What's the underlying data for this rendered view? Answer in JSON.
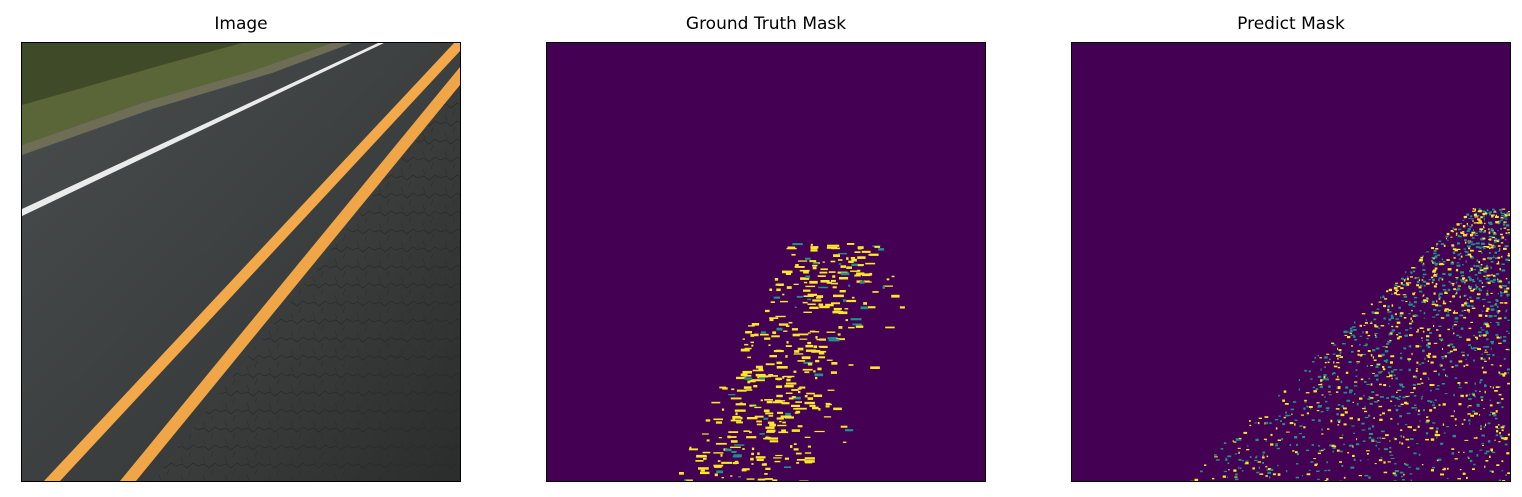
{
  "panels": [
    {
      "title": "Image"
    },
    {
      "title": "Ground Truth Mask"
    },
    {
      "title": "Predict Mask"
    }
  ],
  "colors": {
    "mask_background": "#440154",
    "mask_foreground": "#fde725",
    "mask_mid": "#21918c",
    "road_asphalt": "#3c3f3f",
    "lane_yellow": "#f3a94a",
    "lane_white": "#e9ecea",
    "grass": "#5f6a39"
  }
}
